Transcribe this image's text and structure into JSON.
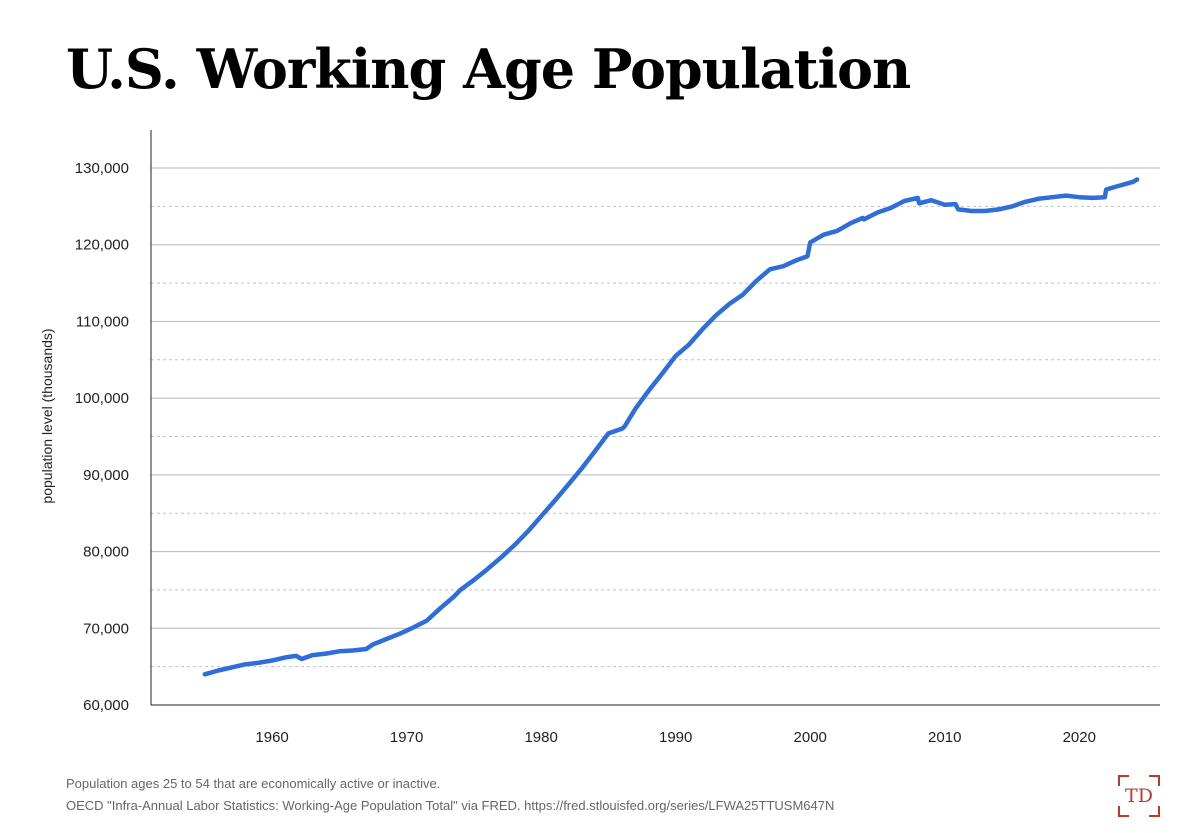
{
  "title": "U.S. Working Age Population",
  "footnotes": {
    "note": "Population ages 25 to 54 that are economically active or inactive.",
    "source": "OECD \"Infra-Annual Labor Statistics: Working-Age Population Total\" via FRED. https://fred.stlouisfed.org/series/LFWA25TTUSM647N"
  },
  "logo": {
    "text": "TD",
    "color": "#c0392b"
  },
  "chart_data": {
    "type": "line",
    "title": "U.S. Working Age Population",
    "ylabel": "population level (thousands)",
    "xlabel": "",
    "xlim": [
      1951,
      2026
    ],
    "ylim": [
      60000,
      135000
    ],
    "yticks": [
      60000,
      70000,
      80000,
      90000,
      100000,
      110000,
      120000,
      130000
    ],
    "ytick_labels": [
      "60,000",
      "70,000",
      "80,000",
      "90,000",
      "100,000",
      "110,000",
      "120,000",
      "130,000"
    ],
    "xticks": [
      1960,
      1970,
      1980,
      1990,
      2000,
      2010,
      2020
    ],
    "xtick_labels": [
      "1960",
      "1970",
      "1980",
      "1990",
      "2000",
      "2010",
      "2020"
    ],
    "grid": true,
    "line_color": "#2f6ddb",
    "series": [
      {
        "x": [
          1955.0,
          1956.0,
          1957.0,
          1958.0,
          1959.0,
          1960.0,
          1961.0,
          1961.8,
          1962.2,
          1963.0,
          1964.0,
          1965.0,
          1966.0,
          1967.0,
          1967.5,
          1968.5,
          1969.5,
          1970.5,
          1971.5,
          1972.5,
          1973.5,
          1974.0,
          1975.0,
          1976.0,
          1977.0,
          1978.0,
          1979.0,
          1980.0,
          1981.0,
          1982.0,
          1983.0,
          1984.0,
          1985.0,
          1986.0,
          1986.2,
          1987.0,
          1988.0,
          1989.0,
          1990.0,
          1991.0,
          1992.0,
          1993.0,
          1994.0,
          1995.0,
          1996.0,
          1997.0,
          1998.0,
          1999.0,
          1999.8,
          2000.0,
          2001.0,
          2002.0,
          2003.0,
          2003.9,
          2004.0,
          2005.0,
          2006.0,
          2007.0,
          2008.0,
          2008.1,
          2009.0,
          2010.0,
          2010.8,
          2011.0,
          2012.0,
          2013.0,
          2014.0,
          2015.0,
          2016.0,
          2017.0,
          2018.0,
          2019.0,
          2020.0,
          2021.0,
          2021.9,
          2022.0,
          2023.0,
          2024.0,
          2024.3
        ],
        "y": [
          64000,
          64500,
          64900,
          65300,
          65500,
          65800,
          66200,
          66400,
          66000,
          66500,
          66700,
          67000,
          67100,
          67300,
          67900,
          68600,
          69300,
          70100,
          71000,
          72600,
          74100,
          75000,
          76300,
          77700,
          79200,
          80800,
          82600,
          84600,
          86600,
          88700,
          90800,
          93100,
          95400,
          96000,
          96300,
          98600,
          101000,
          103200,
          105500,
          107000,
          109000,
          110800,
          112300,
          113500,
          115300,
          116800,
          117200,
          118000,
          118500,
          120300,
          121300,
          121800,
          122800,
          123500,
          123300,
          124200,
          124800,
          125700,
          126100,
          125400,
          125800,
          125200,
          125300,
          124600,
          124400,
          124400,
          124600,
          125000,
          125600,
          126000,
          126200,
          126400,
          126200,
          126100,
          126200,
          127200,
          127700,
          128200,
          128500
        ]
      }
    ]
  }
}
